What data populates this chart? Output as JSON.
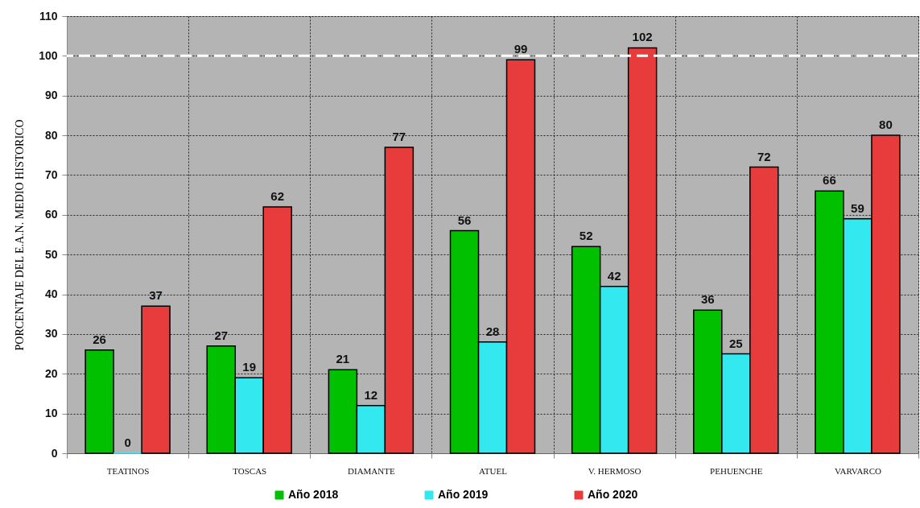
{
  "chart_data": {
    "type": "bar",
    "ylabel": "PORCENTAJE DEL E.A.N. MEDIO HISTORICO",
    "categories": [
      "TEATINOS",
      "TOSCAS",
      "DIAMANTE",
      "ATUEL",
      "V. HERMOSO",
      "PEHUENCHE",
      "VARVARCO"
    ],
    "series": [
      {
        "name": "Año 2018",
        "color": "#00c000",
        "values": [
          26,
          27,
          21,
          56,
          52,
          36,
          66
        ]
      },
      {
        "name": "Año 2019",
        "color": "#33e8ee",
        "values": [
          0,
          19,
          12,
          28,
          42,
          25,
          59
        ]
      },
      {
        "name": "Año 2020",
        "color": "#e83c3c",
        "values": [
          37,
          62,
          77,
          99,
          102,
          72,
          80
        ]
      }
    ],
    "ylim": [
      0,
      110
    ],
    "yticks": [
      0,
      10,
      20,
      30,
      40,
      50,
      60,
      70,
      80,
      90,
      100,
      110
    ],
    "grid": true,
    "legend": "bottom",
    "data_labels": true,
    "ref_lines": [
      {
        "axis": "y",
        "value": 100,
        "color": "#ffffff",
        "line_style": "dashed"
      }
    ]
  }
}
